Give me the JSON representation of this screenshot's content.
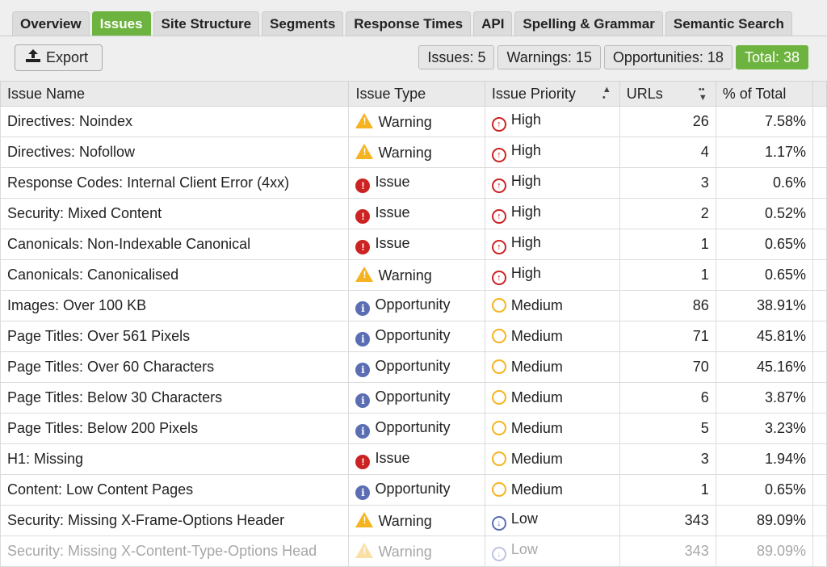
{
  "tabs": [
    "Overview",
    "Issues",
    "Site Structure",
    "Segments",
    "Response Times",
    "API",
    "Spelling & Grammar",
    "Semantic Search"
  ],
  "active_tab": "Issues",
  "toolbar": {
    "export_label": "Export",
    "issues": "Issues: 5",
    "warnings": "Warnings: 15",
    "opportunities": "Opportunities: 18",
    "total": "Total: 38"
  },
  "colors": {
    "accent": "#6db33f",
    "issue": "#cc2222",
    "warning": "#f5b320",
    "opportunity": "#5b6db3"
  },
  "columns": [
    "Issue Name",
    "Issue Type",
    "Issue Priority",
    "URLs",
    "% of Total"
  ],
  "rows": [
    [
      "Directives: Noindex",
      "Warning",
      "High",
      "26",
      "7.58%"
    ],
    [
      "Directives: Nofollow",
      "Warning",
      "High",
      "4",
      "1.17%"
    ],
    [
      "Response Codes: Internal Client Error (4xx)",
      "Issue",
      "High",
      "3",
      "0.6%"
    ],
    [
      "Security: Mixed Content",
      "Issue",
      "High",
      "2",
      "0.52%"
    ],
    [
      "Canonicals: Non-Indexable Canonical",
      "Issue",
      "High",
      "1",
      "0.65%"
    ],
    [
      "Canonicals: Canonicalised",
      "Warning",
      "High",
      "1",
      "0.65%"
    ],
    [
      "Images: Over 100 KB",
      "Opportunity",
      "Medium",
      "86",
      "38.91%"
    ],
    [
      "Page Titles: Over 561 Pixels",
      "Opportunity",
      "Medium",
      "71",
      "45.81%"
    ],
    [
      "Page Titles: Over 60 Characters",
      "Opportunity",
      "Medium",
      "70",
      "45.16%"
    ],
    [
      "Page Titles: Below 30 Characters",
      "Opportunity",
      "Medium",
      "6",
      "3.87%"
    ],
    [
      "Page Titles: Below 200 Pixels",
      "Opportunity",
      "Medium",
      "5",
      "3.23%"
    ],
    [
      "H1: Missing",
      "Issue",
      "Medium",
      "3",
      "1.94%"
    ],
    [
      "Content: Low Content Pages",
      "Opportunity",
      "Medium",
      "1",
      "0.65%"
    ],
    [
      "Security: Missing X-Frame-Options Header",
      "Warning",
      "Low",
      "343",
      "89.09%"
    ],
    [
      "Security: Missing X-Content-Type-Options Head",
      "Warning",
      "Low",
      "343",
      "89.09%"
    ]
  ]
}
